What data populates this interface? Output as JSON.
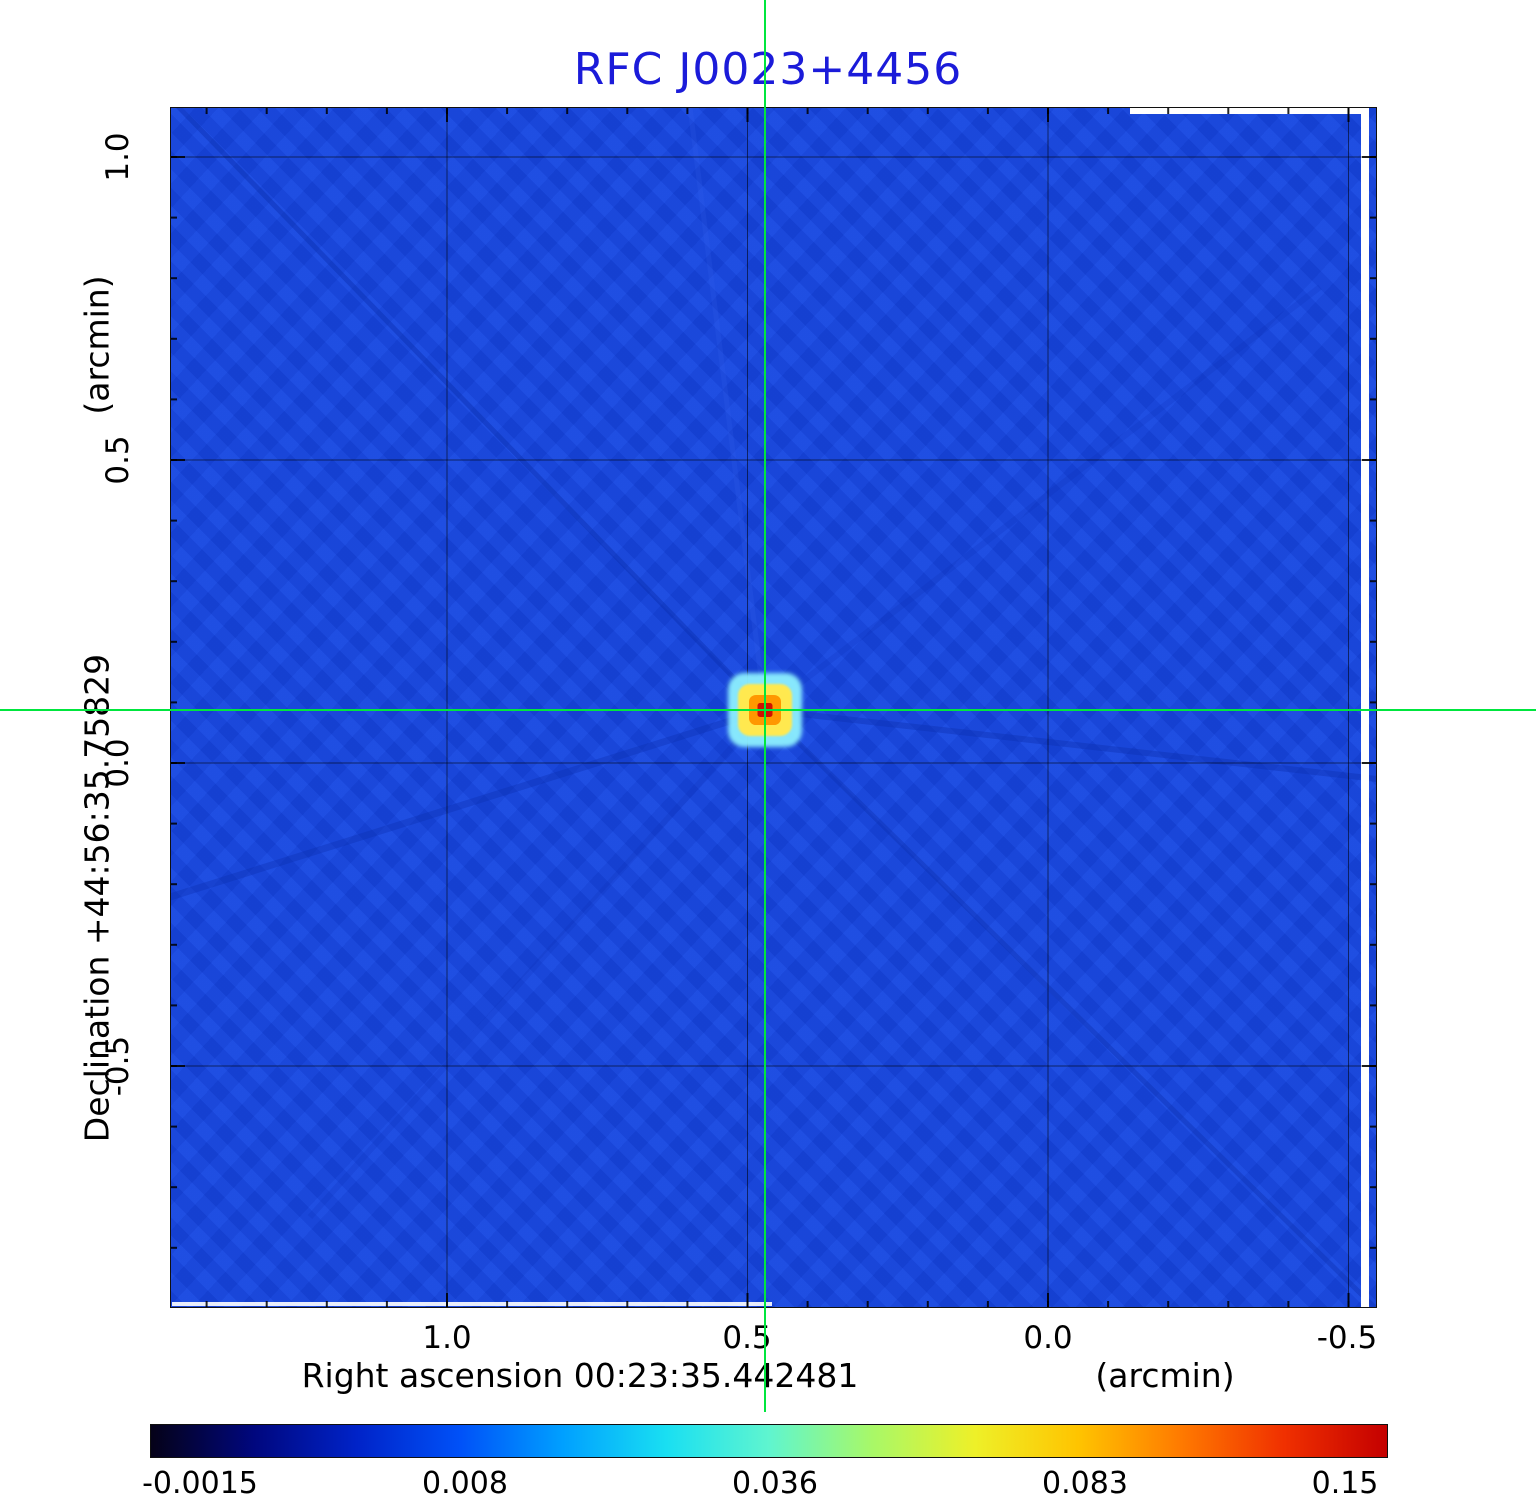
{
  "title": {
    "text": "RFC J0023+4456",
    "color": "#1b1bd9"
  },
  "axes": {
    "x_title": "Right ascension  00:23:35.442481",
    "x_unit": "(arcmin)",
    "y_title": "Declination  +44:56:35.75829",
    "y_unit": "(arcmin)",
    "x_ticks": [
      "1.0",
      "0.5",
      "0.0",
      "-0.5"
    ],
    "y_ticks": [
      "1.0",
      "0.5",
      "0.0",
      "-0.5"
    ]
  },
  "colorbar": {
    "tick_labels": [
      "-0.0015",
      "0.008",
      "0.036",
      "0.083",
      "0.15"
    ],
    "gradient": [
      "#050218",
      "#00077e",
      "#0023c8",
      "#0051f8",
      "#00a0ff",
      "#19dff2",
      "#5ff5cf",
      "#a8f868",
      "#eef028",
      "#ffc400",
      "#ff7a00",
      "#f03000",
      "#c40000"
    ]
  },
  "crosshair_color": "#00e63e",
  "map_background": "#1747e0",
  "chart_data": {
    "type": "heatmap",
    "title": "RFC J0023+4456",
    "xlabel": "Right ascension 00:23:35.442481 (arcmin)",
    "ylabel": "Declination +44:56:35.75829 (arcmin)",
    "x_tick_values": [
      1.0,
      0.5,
      0.0,
      -0.5
    ],
    "y_tick_values": [
      1.0,
      0.5,
      0.0,
      -0.5
    ],
    "x_range": [
      1.46,
      -0.55
    ],
    "y_range": [
      -0.93,
      1.08
    ],
    "value_min": -0.0015,
    "value_max": 0.15,
    "colorbar_ticks": [
      -0.0015,
      0.008,
      0.036,
      0.083,
      0.15
    ],
    "colormap": "rainbow",
    "grid": true,
    "peak": {
      "x_arcmin": 0.47,
      "y_arcmin": 0.09,
      "value": 0.15
    },
    "crosshair": {
      "x_arcmin": 0.47,
      "y_arcmin": 0.09
    },
    "background_level": 0.0,
    "description": "Radio interferometric intensity map: compact point source at crosshair with faint diagonal sidelobe streaks over uniform low-level background."
  }
}
